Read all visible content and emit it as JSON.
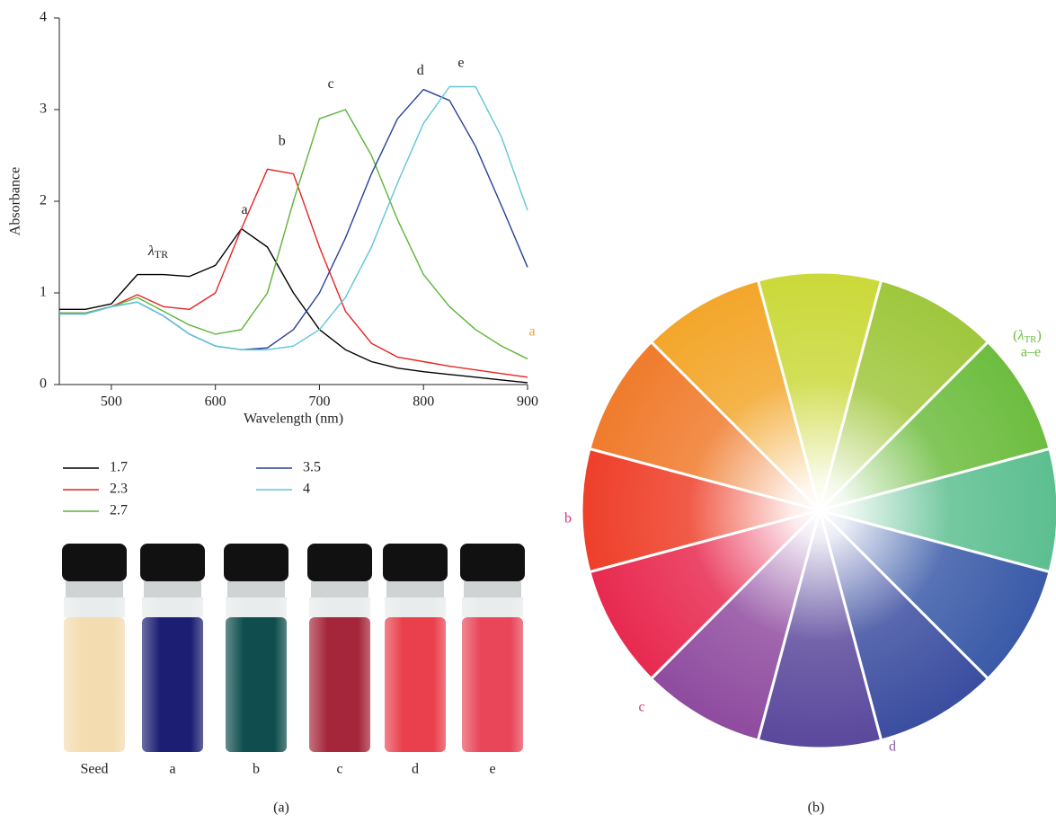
{
  "chart_data": {
    "type": "line",
    "x_label": "Wavelength (nm)",
    "y_label": "Absorbance",
    "x": [
      450,
      475,
      500,
      525,
      550,
      575,
      600,
      625,
      650,
      675,
      700,
      725,
      750,
      775,
      800,
      825,
      850,
      875,
      900
    ],
    "series": [
      {
        "name": "1.7",
        "color": "#000000",
        "values": [
          0.82,
          0.82,
          0.88,
          1.2,
          1.2,
          1.18,
          1.3,
          1.7,
          1.5,
          1.0,
          0.6,
          0.38,
          0.25,
          0.18,
          0.14,
          0.11,
          0.08,
          0.05,
          0.02
        ]
      },
      {
        "name": "2.3",
        "color": "#e8231f",
        "values": [
          0.78,
          0.78,
          0.85,
          0.98,
          0.85,
          0.82,
          1.0,
          1.7,
          2.35,
          2.3,
          1.5,
          0.8,
          0.45,
          0.3,
          0.25,
          0.2,
          0.16,
          0.12,
          0.08
        ]
      },
      {
        "name": "2.7",
        "color": "#5cb43a",
        "values": [
          0.78,
          0.78,
          0.85,
          0.95,
          0.8,
          0.65,
          0.55,
          0.6,
          1.0,
          2.0,
          2.9,
          3.0,
          2.5,
          1.8,
          1.2,
          0.85,
          0.6,
          0.42,
          0.28
        ]
      },
      {
        "name": "3.5",
        "color": "#27409a",
        "values": [
          0.77,
          0.77,
          0.85,
          0.9,
          0.75,
          0.55,
          0.42,
          0.38,
          0.4,
          0.6,
          1.0,
          1.6,
          2.3,
          2.9,
          3.22,
          3.1,
          2.6,
          1.95,
          1.28
        ]
      },
      {
        "name": "4",
        "color": "#5fc6d8",
        "values": [
          0.77,
          0.77,
          0.85,
          0.9,
          0.75,
          0.55,
          0.42,
          0.38,
          0.38,
          0.42,
          0.6,
          0.95,
          1.5,
          2.2,
          2.85,
          3.25,
          3.25,
          2.7,
          1.9
        ]
      }
    ],
    "annotations": [
      {
        "text": "a",
        "x": 628,
        "y": 1.9
      },
      {
        "text": "b",
        "x": 664,
        "y": 2.65
      },
      {
        "text": "c",
        "x": 711,
        "y": 3.27
      },
      {
        "text": "d",
        "x": 797,
        "y": 3.42
      },
      {
        "text": "e",
        "x": 836,
        "y": 3.5
      },
      {
        "text": "λ",
        "sub": "TR",
        "x": 545,
        "y": 1.45
      }
    ],
    "xlim": [
      450,
      900
    ],
    "ylim": [
      0,
      4
    ],
    "xticks": [
      500,
      600,
      700,
      800,
      900
    ],
    "yticks": [
      0,
      1,
      2,
      3,
      4
    ]
  },
  "vials": {
    "labels": [
      "Seed",
      "a",
      "b",
      "c",
      "d",
      "e"
    ]
  },
  "color_wheel": {
    "labels": [
      "a",
      "b",
      "c",
      "d"
    ],
    "green_label": {
      "symbol": "λ",
      "sub": "TR",
      "range": "a–e"
    }
  },
  "panel_labels": [
    "(a)",
    "(b)"
  ]
}
